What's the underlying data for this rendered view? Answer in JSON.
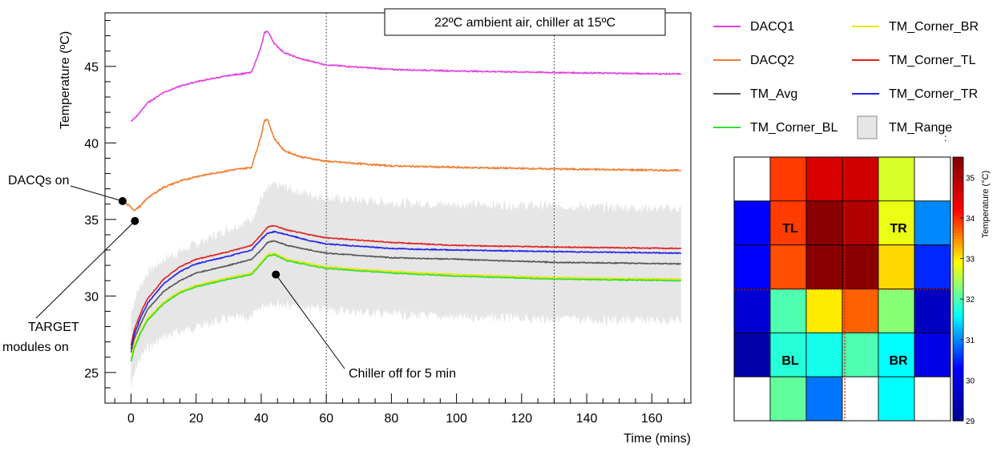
{
  "chart_data": [
    {
      "type": "line",
      "title": "22ºC ambient air, chiller at 15ºC",
      "xlabel": "Time (mins)",
      "ylabel": "Temperature (ºC)",
      "xlim": [
        -8,
        172
      ],
      "ylim": [
        23,
        48.5
      ],
      "xticks": [
        0,
        20,
        40,
        60,
        80,
        100,
        120,
        140,
        160
      ],
      "yticks": [
        25,
        30,
        35,
        40,
        45
      ],
      "vlines": [
        60,
        130
      ],
      "grid": false,
      "legend": "right",
      "legend_entries": [
        {
          "name": "DACQ1",
          "color": "#e040e0",
          "kind": "line"
        },
        {
          "name": "TM_Corner_BR",
          "color": "#e8e800",
          "kind": "line"
        },
        {
          "name": "DACQ2",
          "color": "#f07c30",
          "kind": "line"
        },
        {
          "name": "TM_Corner_TL",
          "color": "#e02020",
          "kind": "line"
        },
        {
          "name": "TM_Avg",
          "color": "#555555",
          "kind": "line"
        },
        {
          "name": "TM_Corner_TR",
          "color": "#2020ee",
          "kind": "line"
        },
        {
          "name": "TM_Corner_BL",
          "color": "#30dd30",
          "kind": "line"
        },
        {
          "name": "TM_Range",
          "color": "#e6e6e6",
          "kind": "fill"
        }
      ],
      "band": {
        "name": "TM_Range",
        "color": "#e6e6e6",
        "x": [
          0,
          2,
          5,
          10,
          20,
          30,
          37,
          40,
          43,
          46,
          50,
          60,
          80,
          100,
          130,
          150,
          169
        ],
        "low": [
          24.0,
          25.6,
          26.6,
          27.3,
          28.0,
          28.5,
          28.6,
          29.3,
          29.6,
          29.5,
          29.3,
          29.1,
          28.8,
          28.6,
          28.5,
          28.4,
          28.4
        ],
        "high": [
          29.0,
          30.3,
          31.5,
          32.4,
          33.4,
          34.4,
          35.0,
          36.4,
          37.2,
          37.2,
          36.9,
          36.4,
          36.1,
          36.0,
          35.9,
          35.8,
          35.7
        ]
      },
      "series": [
        {
          "name": "DACQ1",
          "color": "#e040e0",
          "noise": 0.04,
          "x": [
            0,
            2,
            5,
            10,
            15,
            20,
            30,
            37,
            40,
            41,
            42,
            44,
            47,
            52,
            60,
            80,
            100,
            130,
            169
          ],
          "y": [
            41.4,
            41.8,
            42.6,
            43.3,
            43.7,
            44.0,
            44.4,
            44.6,
            46.3,
            47.2,
            47.3,
            46.5,
            45.9,
            45.5,
            45.1,
            44.8,
            44.7,
            44.6,
            44.5
          ]
        },
        {
          "name": "DACQ2",
          "color": "#f07c30",
          "noise": 0.05,
          "x": [
            -2,
            0,
            1,
            3,
            5,
            10,
            15,
            20,
            30,
            37,
            40,
            41,
            42,
            44,
            47,
            52,
            60,
            80,
            100,
            130,
            169
          ],
          "y": [
            36.1,
            35.8,
            35.6,
            35.9,
            36.4,
            37.1,
            37.5,
            37.8,
            38.2,
            38.4,
            40.5,
            41.5,
            41.5,
            40.3,
            39.5,
            39.1,
            38.8,
            38.5,
            38.4,
            38.3,
            38.2
          ]
        },
        {
          "name": "TM_Corner_TL",
          "color": "#e02020",
          "noise": 0.03,
          "x": [
            0,
            1,
            3,
            5,
            10,
            15,
            20,
            30,
            37,
            40,
            42,
            44,
            48,
            55,
            60,
            80,
            100,
            130,
            169
          ],
          "y": [
            26.8,
            27.8,
            28.9,
            29.8,
            31.1,
            31.9,
            32.4,
            32.9,
            33.3,
            34.0,
            34.5,
            34.6,
            34.3,
            34.0,
            33.8,
            33.5,
            33.3,
            33.2,
            33.1
          ]
        },
        {
          "name": "TM_Corner_TR",
          "color": "#2020ee",
          "noise": 0.03,
          "x": [
            0,
            1,
            3,
            5,
            10,
            15,
            20,
            30,
            37,
            40,
            42,
            44,
            48,
            55,
            60,
            80,
            100,
            130,
            169
          ],
          "y": [
            26.5,
            27.5,
            28.6,
            29.5,
            30.8,
            31.6,
            32.1,
            32.6,
            33.0,
            33.7,
            34.1,
            34.2,
            34.0,
            33.6,
            33.4,
            33.1,
            33.0,
            32.9,
            32.8
          ]
        },
        {
          "name": "TM_Avg",
          "color": "#555555",
          "noise": 0.03,
          "x": [
            0,
            1,
            3,
            5,
            10,
            15,
            20,
            30,
            37,
            40,
            42,
            44,
            48,
            55,
            60,
            80,
            100,
            130,
            169
          ],
          "y": [
            26.3,
            27.2,
            28.2,
            29.1,
            30.3,
            31.0,
            31.5,
            32.0,
            32.4,
            33.0,
            33.5,
            33.6,
            33.3,
            33.0,
            32.8,
            32.5,
            32.4,
            32.2,
            32.1
          ]
        },
        {
          "name": "TM_Corner_BR",
          "color": "#e8e800",
          "noise": 0.03,
          "x": [
            0,
            1,
            3,
            5,
            10,
            15,
            20,
            30,
            37,
            40,
            42,
            44,
            48,
            55,
            60,
            80,
            100,
            130,
            169
          ],
          "y": [
            25.9,
            26.8,
            27.7,
            28.5,
            29.6,
            30.3,
            30.7,
            31.2,
            31.5,
            32.2,
            32.7,
            32.8,
            32.4,
            32.1,
            31.9,
            31.6,
            31.4,
            31.2,
            31.1
          ]
        },
        {
          "name": "TM_Corner_BL",
          "color": "#30dd30",
          "noise": 0.03,
          "x": [
            0,
            1,
            3,
            5,
            10,
            15,
            20,
            30,
            37,
            40,
            42,
            44,
            48,
            55,
            60,
            80,
            100,
            130,
            169
          ],
          "y": [
            25.7,
            26.6,
            27.6,
            28.4,
            29.5,
            30.2,
            30.6,
            31.1,
            31.4,
            32.1,
            32.6,
            32.7,
            32.3,
            32.0,
            31.8,
            31.5,
            31.3,
            31.1,
            31.0
          ]
        }
      ],
      "annotations": [
        {
          "text": "DACQs on",
          "point": [
            -2.6,
            36.2
          ]
        },
        {
          "text": "TARGET modules on",
          "lines": [
            "TARGET",
            "modules on"
          ],
          "point": [
            1.2,
            34.9
          ]
        },
        {
          "text": "Chiller off for 5 min",
          "point": [
            44.5,
            31.4
          ]
        }
      ]
    },
    {
      "type": "heatmap",
      "colorbar_label": "Temperature (°C)",
      "zlim": [
        29,
        35.5
      ],
      "colorbar_ticks": [
        29,
        30,
        31,
        32,
        33,
        34,
        35
      ],
      "rows": 6,
      "cols": 6,
      "values": [
        [
          null,
          33.9,
          34.6,
          34.7,
          32.7,
          null
        ],
        [
          30.3,
          33.9,
          35.4,
          35.0,
          32.8,
          31.0
        ],
        [
          30.3,
          33.8,
          35.4,
          35.4,
          33.1,
          30.5
        ],
        [
          29.8,
          32.0,
          33.0,
          33.7,
          32.3,
          29.6
        ],
        [
          29.3,
          31.8,
          31.7,
          32.0,
          31.6,
          30.0
        ],
        [
          null,
          32.1,
          30.9,
          null,
          31.6,
          null
        ]
      ],
      "labels": [
        "TL",
        "TR",
        "BL",
        "BR"
      ]
    }
  ],
  "colormap": [
    "#00008f",
    "#0000ff",
    "#00ffff",
    "#ffff00",
    "#ff0000",
    "#800000"
  ]
}
